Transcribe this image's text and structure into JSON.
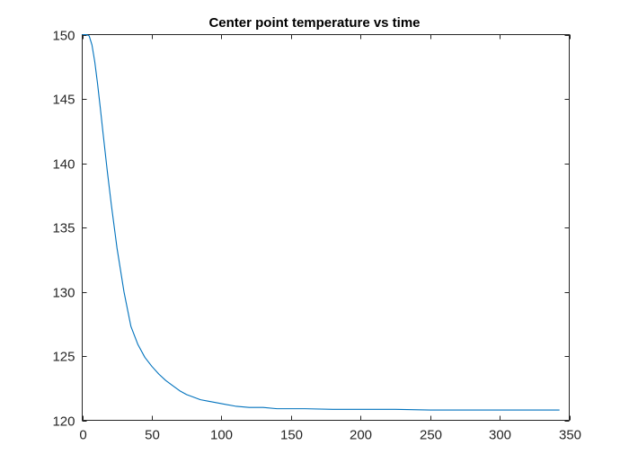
{
  "chart_data": {
    "type": "line",
    "title": "Center point temperature vs time",
    "xlabel": "",
    "ylabel": "",
    "xlim": [
      0,
      350
    ],
    "ylim": [
      120,
      150
    ],
    "xticks": [
      0,
      50,
      100,
      150,
      200,
      250,
      300,
      350
    ],
    "yticks": [
      120,
      125,
      130,
      135,
      140,
      145,
      150
    ],
    "grid": false,
    "legend": "none",
    "line_color": "#0072BD",
    "series": [
      {
        "x": [
          0,
          3,
          5,
          7,
          9,
          11,
          13,
          15,
          18,
          21,
          25,
          30,
          35,
          40,
          45,
          50,
          55,
          60,
          65,
          70,
          75,
          80,
          85,
          90,
          100,
          110,
          120,
          130,
          140,
          150,
          160,
          180,
          200,
          225,
          250,
          275,
          300,
          320,
          343
        ],
        "y": [
          150,
          150,
          149.9,
          149.2,
          147.9,
          146.2,
          144.3,
          142.3,
          139.4,
          136.7,
          133.4,
          130.0,
          127.3,
          125.9,
          124.9,
          124.2,
          123.6,
          123.1,
          122.7,
          122.3,
          122.0,
          121.8,
          121.6,
          121.5,
          121.3,
          121.1,
          121.0,
          121.0,
          120.9,
          120.9,
          120.9,
          120.85,
          120.85,
          120.85,
          120.8,
          120.8,
          120.8,
          120.8,
          120.8
        ]
      }
    ]
  }
}
